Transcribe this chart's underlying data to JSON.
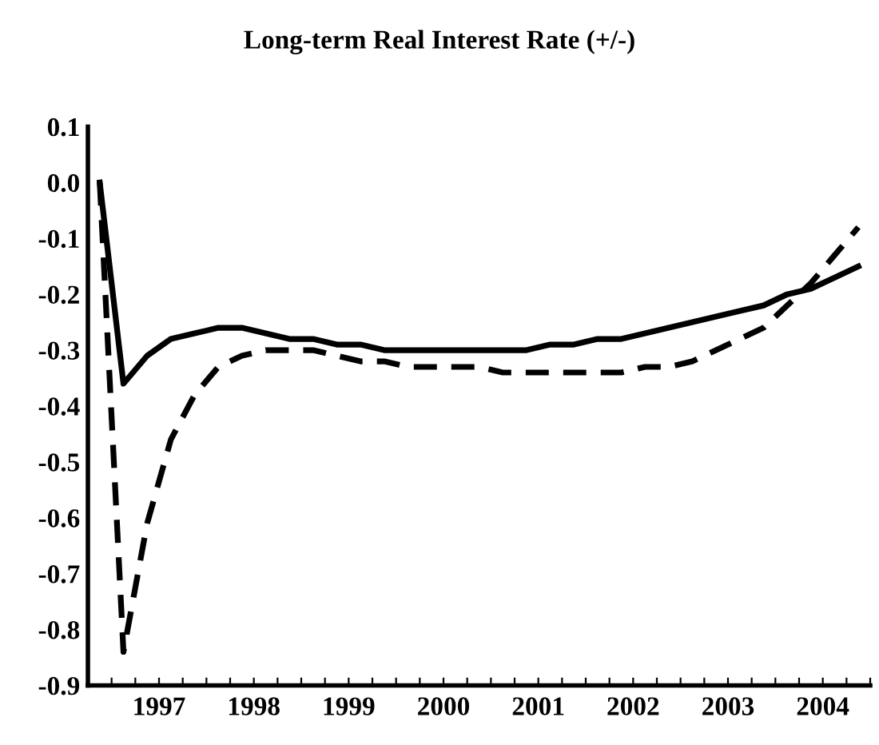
{
  "chart_data": {
    "type": "line",
    "title": "Long-term Real Interest Rate (+/-)",
    "x": [
      1996.875,
      1997.125,
      1997.375,
      1997.625,
      1997.875,
      1998.125,
      1998.375,
      1998.625,
      1998.875,
      1999.125,
      1999.375,
      1999.625,
      1999.875,
      2000.125,
      2000.375,
      2000.625,
      2000.875,
      2001.125,
      2001.375,
      2001.625,
      2001.875,
      2002.125,
      2002.375,
      2002.625,
      2002.875,
      2003.125,
      2003.375,
      2003.625,
      2003.875,
      2004.125,
      2004.375,
      2004.625,
      2004.875
    ],
    "series": [
      {
        "color": "#000000",
        "line_style": "solid",
        "values": [
          0.0,
          -0.36,
          -0.31,
          -0.28,
          -0.27,
          -0.26,
          -0.26,
          -0.27,
          -0.28,
          -0.28,
          -0.29,
          -0.29,
          -0.3,
          -0.3,
          -0.3,
          -0.3,
          -0.3,
          -0.3,
          -0.3,
          -0.29,
          -0.29,
          -0.28,
          -0.28,
          -0.27,
          -0.26,
          -0.25,
          -0.24,
          -0.23,
          -0.22,
          -0.2,
          -0.19,
          -0.17,
          -0.15
        ]
      },
      {
        "color": "#000000",
        "line_style": "dashed",
        "values": [
          0.0,
          -0.84,
          -0.61,
          -0.46,
          -0.38,
          -0.33,
          -0.31,
          -0.3,
          -0.3,
          -0.3,
          -0.31,
          -0.32,
          -0.32,
          -0.33,
          -0.33,
          -0.33,
          -0.33,
          -0.34,
          -0.34,
          -0.34,
          -0.34,
          -0.34,
          -0.34,
          -0.33,
          -0.33,
          -0.32,
          -0.3,
          -0.28,
          -0.26,
          -0.22,
          -0.18,
          -0.13,
          -0.08
        ]
      }
    ],
    "xlim": [
      1996.75,
      2005
    ],
    "xticks": [
      {
        "value": 1996.75,
        "label": null
      },
      {
        "value": 1997,
        "label": null
      },
      {
        "value": 1997.25,
        "label": null
      },
      {
        "value": 1997.5,
        "label": "1997"
      },
      {
        "value": 1997.75,
        "label": null
      },
      {
        "value": 1998,
        "label": null
      },
      {
        "value": 1998.25,
        "label": null
      },
      {
        "value": 1998.5,
        "label": "1998"
      },
      {
        "value": 1998.75,
        "label": null
      },
      {
        "value": 1999,
        "label": null
      },
      {
        "value": 1999.25,
        "label": null
      },
      {
        "value": 1999.5,
        "label": "1999"
      },
      {
        "value": 1999.75,
        "label": null
      },
      {
        "value": 2000,
        "label": null
      },
      {
        "value": 2000.25,
        "label": null
      },
      {
        "value": 2000.5,
        "label": "2000"
      },
      {
        "value": 2000.75,
        "label": null
      },
      {
        "value": 2001,
        "label": null
      },
      {
        "value": 2001.25,
        "label": null
      },
      {
        "value": 2001.5,
        "label": "2001"
      },
      {
        "value": 2001.75,
        "label": null
      },
      {
        "value": 2002,
        "label": null
      },
      {
        "value": 2002.25,
        "label": null
      },
      {
        "value": 2002.5,
        "label": "2002"
      },
      {
        "value": 2002.75,
        "label": null
      },
      {
        "value": 2003,
        "label": null
      },
      {
        "value": 2003.25,
        "label": null
      },
      {
        "value": 2003.5,
        "label": "2003"
      },
      {
        "value": 2003.75,
        "label": null
      },
      {
        "value": 2004,
        "label": null
      },
      {
        "value": 2004.25,
        "label": null
      },
      {
        "value": 2004.5,
        "label": "2004"
      },
      {
        "value": 2004.75,
        "label": null
      },
      {
        "value": 2005,
        "label": null
      }
    ],
    "ylim": [
      -0.9,
      0.1
    ],
    "yticks": [
      {
        "value": -0.9,
        "label": "-0.9"
      },
      {
        "value": -0.8,
        "label": "-0.8"
      },
      {
        "value": -0.7,
        "label": "-0.7"
      },
      {
        "value": -0.6,
        "label": "-0.6"
      },
      {
        "value": -0.5,
        "label": "-0.5"
      },
      {
        "value": -0.4,
        "label": "-0.4"
      },
      {
        "value": -0.3,
        "label": "-0.3"
      },
      {
        "value": -0.2,
        "label": "-0.2"
      },
      {
        "value": -0.1,
        "label": "-0.1"
      },
      {
        "value": 0,
        "label": "0.0"
      },
      {
        "value": 0.1,
        "label": "0.1"
      }
    ],
    "grid": false,
    "legend": false
  }
}
